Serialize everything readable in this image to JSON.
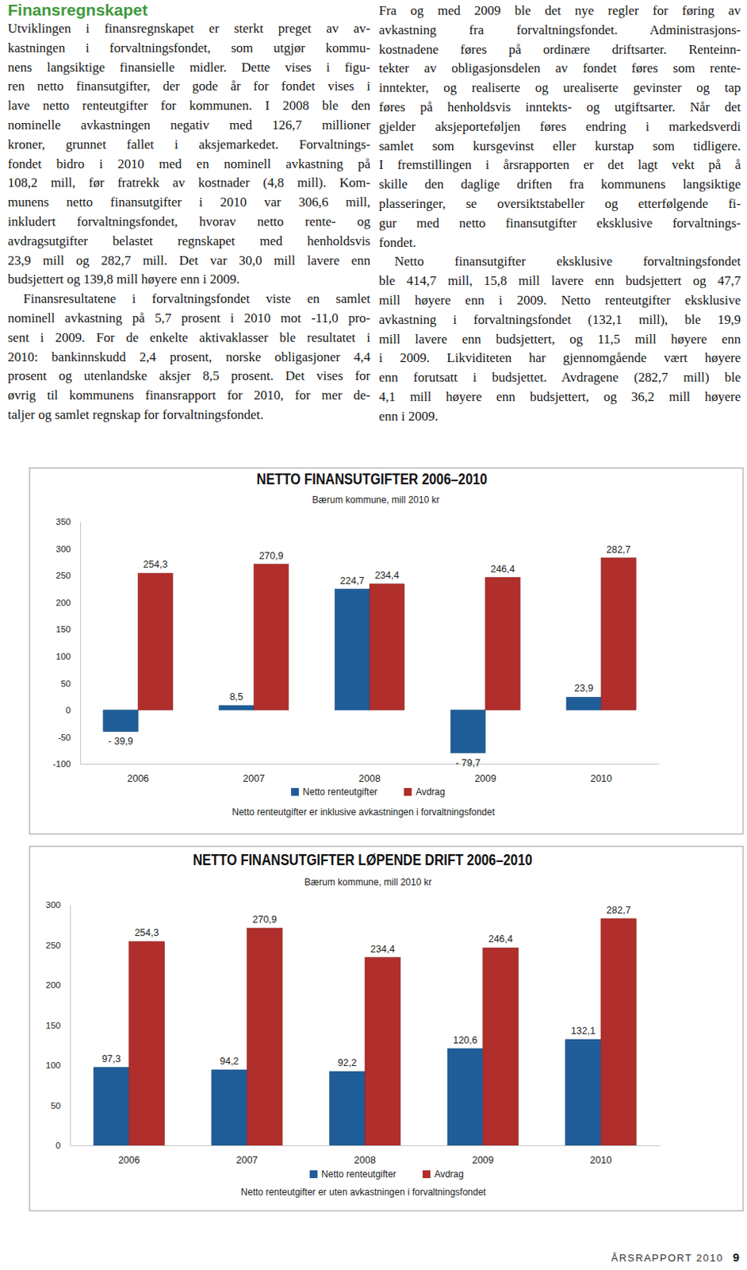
{
  "header": {
    "title": "Finansregnskapet"
  },
  "columns": [
    {
      "paragraphs": [
        [
          "Utviklingen i finansregnskapet er sterkt preget av av-",
          "kastningen i forvaltningsfondet, som utgjør kommu-",
          "nens langsiktige finansielle midler. Dette vises i figu-",
          "ren netto finansutgifter, der gode år for fondet vises i",
          "lave netto renteutgifter for kommunen. I 2008 ble den",
          "nominelle avkastningen negativ med 126,7 millioner",
          "kroner, grunnet fallet i aksjemarkedet. Forvaltnings-",
          "fondet bidro i 2010 med en nominell avkastning på",
          "108,2 mill, før fratrekk av kostnader (4,8 mill). Kom-",
          "munens netto finansutgifter i 2010 var 306,6 mill,",
          "inkludert forvaltningsfondet, hvorav netto rente- og",
          "avdragsutgifter belastet regnskapet med henholdsvis",
          "23,9 mill og 282,7 mill. Det var 30,0 mill lavere enn",
          "budsjettert og 139,8 mill høyere enn i 2009."
        ],
        [
          "Finansresultatene i forvaltningsfondet viste en samlet",
          "nominell avkastning på 5,7 prosent i 2010 mot -11,0 pro-",
          "sent i 2009. For de enkelte aktivaklasser ble resultatet i",
          "2010: bankinnskudd 2,4 prosent, norske obligasjoner 4,4",
          "prosent og utenlandske aksjer 8,5 prosent. Det vises for",
          "øvrig til kommunens finansrapport for 2010, for mer de-",
          "taljer og samlet regnskap for forvaltningsfondet."
        ]
      ]
    },
    {
      "paragraphs": [
        [
          "Fra og med 2009 ble det nye regler for føring av",
          "avkastning fra forvaltningsfondet. Administrasjons-",
          "kostnadene føres på ordinære driftsarter. Renteinn-",
          "tekter av obligasjonsdelen av fondet føres som rente-",
          "inntekter, og realiserte og urealiserte gevinster og tap",
          "føres på henholdsvis inntekts- og utgiftsarter. Når det",
          "gjelder aksjeporteføljen føres endring i markedsverdi",
          "samlet som kursgevinst eller kurstap som tidligere.",
          "I fremstillingen i årsrapporten er det lagt vekt på å",
          "skille den daglige driften fra kommunens langsiktige",
          "plasseringer, se oversiktstabeller og etterfølgende fi-",
          "gur med netto finansutgifter eksklusive forvaltnings-",
          "fondet."
        ],
        [
          "Netto finansutgifter eksklusive forvaltningsfondet",
          "ble 414,7 mill, 15,8 mill lavere enn budsjettert og 47,7",
          "mill høyere enn i 2009. Netto renteutgifter eksklusive",
          "avkastning i forvaltningsfondet (132,1 mill), ble 19,9",
          "mill lavere enn budsjettert, og 11,5 mill høyere enn",
          "i 2009. Likviditeten har gjennomgående vært høyere",
          "enn forutsatt i budsjettet. Avdragene (282,7 mill) ble",
          "4,1 mill høyere enn budsjettert, og 36,2 mill høyere",
          "enn i 2009."
        ]
      ]
    }
  ],
  "chart_data": [
    {
      "type": "bar",
      "title": "NETTO FINANSUTGIFTER 2006–2010",
      "subtitle": "Bærum kommune, mill 2010 kr",
      "categories": [
        "2006",
        "2007",
        "2008",
        "2009",
        "2010"
      ],
      "series": [
        {
          "name": "Netto renteutgifter",
          "color": "#1f5d99",
          "values": [
            -39.9,
            8.5,
            224.7,
            -79.7,
            23.9
          ],
          "value_labels": [
            "- 39,9",
            "8,5",
            "224,7",
            "- 79,7",
            "23,9"
          ]
        },
        {
          "name": "Avdrag",
          "color": "#b02e2b",
          "values": [
            254.3,
            270.9,
            234.4,
            246.4,
            282.7
          ],
          "value_labels": [
            "254,3",
            "270,9",
            "234,4",
            "246,4",
            "282,7"
          ]
        }
      ],
      "ylim": [
        -100,
        350
      ],
      "yticks": [
        -100,
        -50,
        0,
        50,
        100,
        150,
        200,
        250,
        300,
        350
      ],
      "data_labels": true,
      "legend": "bottom",
      "annotations": [
        "Netto renteutgifter er inklusive avkastningen i forvaltningsfondet"
      ]
    },
    {
      "type": "bar",
      "title": "NETTO FINANSUTGIFTER LØPENDE DRIFT 2006–2010",
      "subtitle": "Bærum kommune, mill 2010 kr",
      "categories": [
        "2006",
        "2007",
        "2008",
        "2009",
        "2010"
      ],
      "series": [
        {
          "name": "Netto renteutgifter",
          "color": "#1f5d99",
          "values": [
            97.3,
            94.2,
            92.2,
            120.6,
            132.1
          ],
          "value_labels": [
            "97,3",
            "94,2",
            "92,2",
            "120,6",
            "132,1"
          ]
        },
        {
          "name": "Avdrag",
          "color": "#b02e2b",
          "values": [
            254.3,
            270.9,
            234.4,
            246.4,
            282.7
          ],
          "value_labels": [
            "254,3",
            "270,9",
            "234,4",
            "246,4",
            "282,7"
          ]
        }
      ],
      "ylim": [
        0,
        300
      ],
      "yticks": [
        0,
        50,
        100,
        150,
        200,
        250,
        300
      ],
      "data_labels": true,
      "legend": "bottom",
      "annotations": [
        "Netto renteutgifter er uten avkastningen i forvaltningsfondet"
      ]
    }
  ],
  "footer": {
    "text": "ÅRSRAPPORT 2010",
    "page": 9
  }
}
